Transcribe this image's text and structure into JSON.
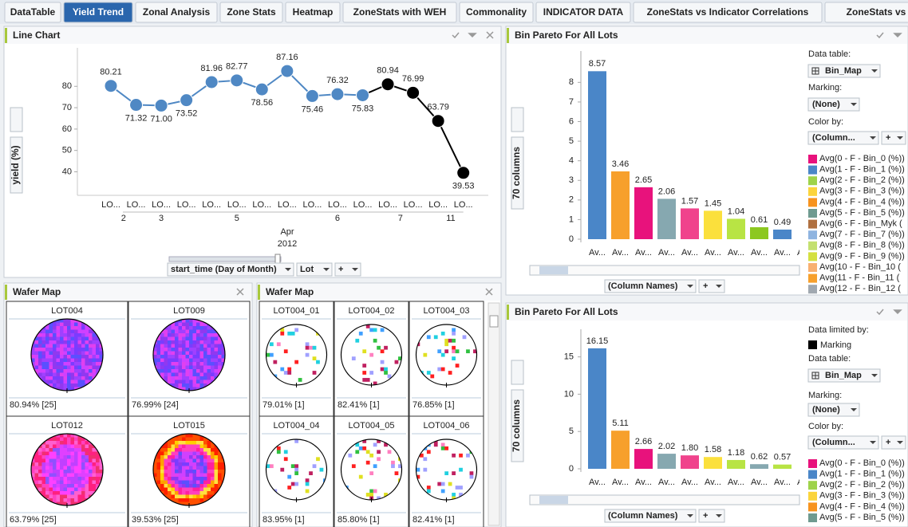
{
  "tabs": [
    "DataTable",
    "Yield Trend",
    "Zonal Analysis",
    "Zone Stats",
    "Heatmap",
    "ZoneStats with WEH",
    "Commonality",
    "INDICATOR DATA",
    "ZoneStats vs Indicator Correlations",
    "ZoneStats vs In"
  ],
  "active_tab": 1,
  "line_chart": {
    "type": "line",
    "title": "Line Chart",
    "y_label": "yield (%)",
    "categories": [
      "LO...",
      "LO...",
      "LO...",
      "LO...",
      "LO...",
      "LO...",
      "LO...",
      "LO...",
      "LO...",
      "LO...",
      "LO...",
      "LO...",
      "LO...",
      "LO...",
      "LO..."
    ],
    "values": [
      80.21,
      71.32,
      71.0,
      73.52,
      81.96,
      82.77,
      78.56,
      87.16,
      75.46,
      76.32,
      75.83,
      80.94,
      76.99,
      63.79,
      39.53
    ],
    "value_labels": [
      "80.21",
      "71.32",
      "71.00",
      "73.52",
      "81.96",
      "82.77",
      "78.56",
      "87.16",
      "75.46",
      "76.32",
      "75.83",
      "80.94",
      "76.99",
      "63.79",
      "39.53"
    ],
    "colors": [
      "#4f88c4",
      "#4f88c4",
      "#4f88c4",
      "#4f88c4",
      "#4f88c4",
      "#4f88c4",
      "#4f88c4",
      "#4f88c4",
      "#4f88c4",
      "#4f88c4",
      "#4f88c4",
      "#000000",
      "#000000",
      "#000000",
      "#000000"
    ],
    "ylim": [
      29,
      98
    ],
    "yticks": [
      40,
      50,
      60,
      70,
      80
    ],
    "grid": false,
    "day_groups": [
      {
        "label": "2",
        "span": 2
      },
      {
        "label": "3",
        "span": 1
      },
      {
        "label": "5",
        "span": 5
      },
      {
        "label": "6",
        "span": 3
      },
      {
        "label": "7",
        "span": 2
      },
      {
        "label": "11",
        "span": 2
      }
    ],
    "month": "Apr",
    "year": "2012",
    "controls": [
      "start_time (Day of Month)",
      "Lot",
      "+"
    ]
  },
  "pareto_top": {
    "type": "bar",
    "title": "Bin Pareto For All Lots",
    "y_label": "70 columns",
    "categories": [
      "Av...",
      "Av...",
      "Av...",
      "Av...",
      "Av...",
      "Av...",
      "Av...",
      "Av...",
      "Av...",
      "Av..."
    ],
    "values": [
      8.57,
      3.46,
      2.65,
      2.06,
      1.57,
      1.45,
      1.04,
      0.61,
      0.49,
      0
    ],
    "colors": [
      "#4a86c8",
      "#f7a02c",
      "#e8127c",
      "#86a8b0",
      "#f0438c",
      "#fbe03c",
      "#b8e444",
      "#8cc820",
      "#4a86c8",
      "#e0104c"
    ],
    "ylim": [
      0,
      9.6
    ],
    "yticks": [
      0,
      1,
      2,
      3,
      4,
      5,
      6,
      7,
      8
    ],
    "x_selector": "(Column Names)",
    "x_add": "+",
    "fields": [
      {
        "label": "Data table:",
        "value": "Bin_Map"
      },
      {
        "label": "Marking:",
        "value": "(None)"
      },
      {
        "label": "Color by:",
        "value": "(Column..."
      }
    ],
    "color_add": "+",
    "legend": [
      {
        "name": "Avg(0 - F - Bin_0 (%))",
        "color": "#e8127c"
      },
      {
        "name": "Avg(1 - F - Bin_1 (%))",
        "color": "#4a86c8"
      },
      {
        "name": "Avg(2 - F - Bin_2 (%))",
        "color": "#9ed34a"
      },
      {
        "name": "Avg(3 - F - Bin_3 (%))",
        "color": "#fbd43c"
      },
      {
        "name": "Avg(4 - F - Bin_4 (%))",
        "color": "#f7931e"
      },
      {
        "name": "Avg(5 - F - Bin_5 (%))",
        "color": "#6f9a90"
      },
      {
        "name": "Avg(6 - F - Bin_Myk (",
        "color": "#b07040"
      },
      {
        "name": "Avg(7 - F - Bin_7 (%))",
        "color": "#8fb4e0"
      },
      {
        "name": "Avg(8 - F - Bin_8 (%))",
        "color": "#c4e070"
      },
      {
        "name": "Avg(9 - F - Bin_9 (%))",
        "color": "#d4e040"
      },
      {
        "name": "Avg(10 - F - Bin_10 (",
        "color": "#f8b070"
      },
      {
        "name": "Avg(11 - F - Bin_11 (",
        "color": "#f7a02c"
      },
      {
        "name": "Avg(12 - F - Bin_12 (",
        "color": "#a0a8b0"
      }
    ]
  },
  "pareto_bottom": {
    "type": "bar",
    "title": "Bin Pareto For All Lots",
    "y_label": "70 columns",
    "categories": [
      "Av...",
      "Av...",
      "Av...",
      "Av...",
      "Av...",
      "Av...",
      "Av...",
      "Av...",
      "Av...",
      "Av..."
    ],
    "values": [
      16.15,
      5.11,
      2.66,
      2.02,
      1.8,
      1.58,
      1.18,
      0.62,
      0.57,
      0
    ],
    "value_labels": [
      "16.15",
      "5.11",
      "2.66",
      "2.02",
      "1.80",
      "1.58",
      "1.18",
      "0.62",
      "0.57",
      "0"
    ],
    "colors": [
      "#4a86c8",
      "#f7a02c",
      "#e8127c",
      "#86a8b0",
      "#f0438c",
      "#fbe03c",
      "#b8e444",
      "#86a8b0",
      "#b8e444",
      "#4a86c8"
    ],
    "ylim": [
      0,
      18.7
    ],
    "yticks": [
      0,
      5,
      10,
      15
    ],
    "x_selector": "(Column Names)",
    "x_add": "+",
    "limited_by": {
      "label": "Data limited by:",
      "value": "Marking",
      "color": "#000000"
    },
    "fields": [
      {
        "label": "Data table:",
        "value": "Bin_Map"
      },
      {
        "label": "Marking:",
        "value": "(None)"
      },
      {
        "label": "Color by:",
        "value": "(Column..."
      }
    ],
    "color_add": "+",
    "legend": [
      {
        "name": "Avg(0 - F - Bin_0 (%))",
        "color": "#e8127c"
      },
      {
        "name": "Avg(1 - F - Bin_1 (%))",
        "color": "#4a86c8"
      },
      {
        "name": "Avg(2 - F - Bin_2 (%))",
        "color": "#9ed34a"
      },
      {
        "name": "Avg(3 - F - Bin_3 (%))",
        "color": "#fbd43c"
      },
      {
        "name": "Avg(4 - F - Bin_4 (%))",
        "color": "#f7931e"
      },
      {
        "name": "Avg(5 - F - Bin_5 (%))",
        "color": "#6f9a90"
      }
    ]
  },
  "wafer_left": {
    "title": "Wafer Map",
    "cells": [
      {
        "lot": "LOT004",
        "label": "80.94% [25]"
      },
      {
        "lot": "LOT009",
        "label": "76.99% [24]"
      },
      {
        "lot": "LOT012",
        "label": "63.79% [25]"
      },
      {
        "lot": "LOT015",
        "label": "39.53% [25]"
      }
    ]
  },
  "wafer_right": {
    "title": "Wafer Map",
    "cells": [
      {
        "lot": "LOT004_01",
        "label": "79.01% [1]"
      },
      {
        "lot": "LOT004_02",
        "label": "82.41% [1]"
      },
      {
        "lot": "LOT004_03",
        "label": "76.85% [1]"
      },
      {
        "lot": "LOT004_04",
        "label": "83.95% [1]"
      },
      {
        "lot": "LOT004_05",
        "label": "85.80% [1]"
      },
      {
        "lot": "LOT004_06",
        "label": "82.41% [1]"
      }
    ]
  }
}
